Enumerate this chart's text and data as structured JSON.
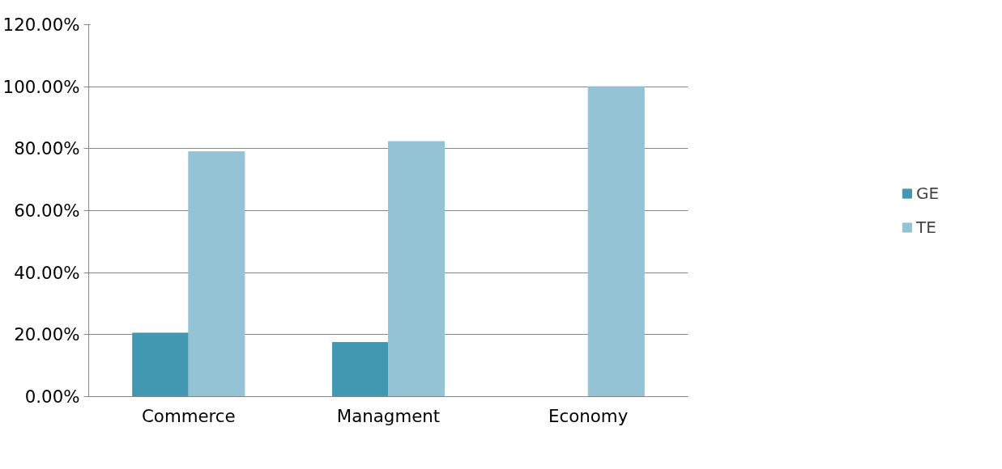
{
  "chart_data": {
    "type": "bar",
    "categories": [
      "Commerce",
      "Managment",
      "Economy"
    ],
    "series": [
      {
        "name": "GE",
        "color": "#4198b0",
        "values": [
          20.5,
          17.5,
          0
        ]
      },
      {
        "name": "TE",
        "color": "#93c3d5",
        "values": [
          79,
          82.3,
          100
        ]
      }
    ],
    "ylim": [
      0,
      120
    ],
    "yticks": [
      {
        "value": 0,
        "label": "0.00%"
      },
      {
        "value": 20,
        "label": "20.00%"
      },
      {
        "value": 40,
        "label": "40.00%"
      },
      {
        "value": 60,
        "label": "60.00%"
      },
      {
        "value": 80,
        "label": "80.00%"
      },
      {
        "value": 100,
        "label": "100.00%"
      },
      {
        "value": 120,
        "label": "120.00%"
      }
    ],
    "grid": "y",
    "legend": "right"
  }
}
